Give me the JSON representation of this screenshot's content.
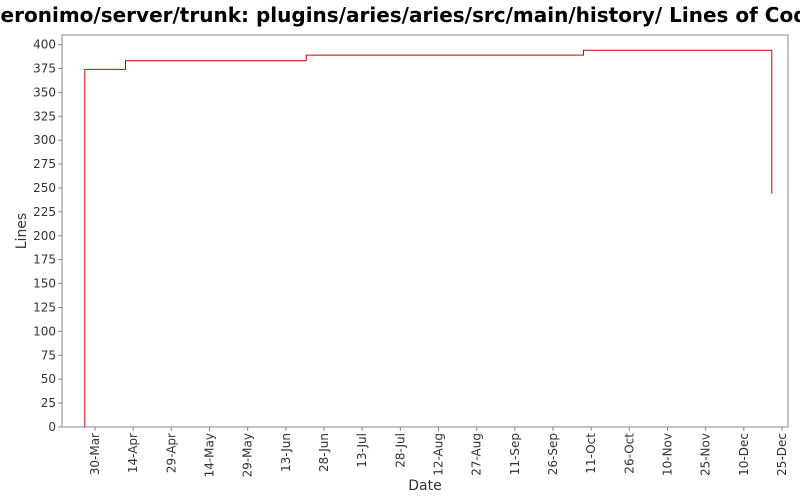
{
  "chart_data": {
    "type": "line",
    "title": "/geronimo/server/trunk: plugins/aries/aries/src/main/history/ Lines of Code",
    "xlabel": "Date",
    "ylabel": "Lines",
    "ylim": [
      0,
      410
    ],
    "yticks": [
      0,
      25,
      50,
      75,
      100,
      125,
      150,
      175,
      200,
      225,
      250,
      275,
      300,
      325,
      350,
      375,
      400
    ],
    "xticks": [
      "30-Mar",
      "14-Apr",
      "29-Apr",
      "14-May",
      "29-May",
      "13-Jun",
      "28-Jun",
      "13-Jul",
      "28-Jul",
      "12-Aug",
      "27-Aug",
      "11-Sep",
      "26-Sep",
      "11-Oct",
      "26-Oct",
      "10-Nov",
      "25-Nov",
      "10-Dec",
      "25-Dec"
    ],
    "grid": false,
    "line_color": "#cc0000",
    "series": [
      {
        "step": true,
        "points": [
          {
            "x": "26-Mar",
            "y": 0
          },
          {
            "x": "26-Mar",
            "y": 374
          },
          {
            "x": "11-Apr",
            "y": 374
          },
          {
            "x": "11-Apr",
            "y": 383
          },
          {
            "x": "21-Jun",
            "y": 383
          },
          {
            "x": "21-Jun",
            "y": 389
          },
          {
            "x": "08-Oct",
            "y": 389
          },
          {
            "x": "08-Oct",
            "y": 394
          },
          {
            "x": "21-Dec",
            "y": 394
          },
          {
            "x": "21-Dec",
            "y": 244
          }
        ]
      }
    ]
  }
}
